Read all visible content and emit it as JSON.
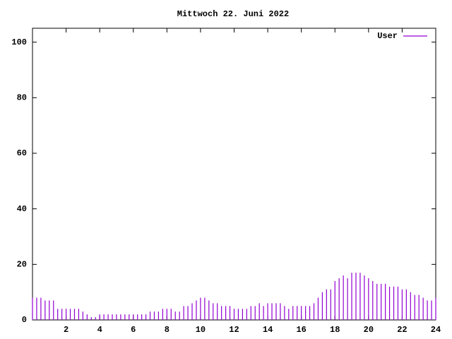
{
  "chart_data": {
    "type": "impulses",
    "title": "Mittwoch 22. Juni 2022",
    "x": [
      0,
      0.25,
      0.5,
      0.75,
      1,
      1.25,
      1.5,
      1.75,
      2,
      2.25,
      2.5,
      2.75,
      3,
      3.25,
      3.5,
      3.75,
      4,
      4.25,
      4.5,
      4.75,
      5,
      5.25,
      5.5,
      5.75,
      6,
      6.25,
      6.5,
      6.75,
      7,
      7.25,
      7.5,
      7.75,
      8,
      8.25,
      8.5,
      8.75,
      9,
      9.25,
      9.5,
      9.75,
      10,
      10.25,
      10.5,
      10.75,
      11,
      11.25,
      11.5,
      11.75,
      12,
      12.25,
      12.5,
      12.75,
      13,
      13.25,
      13.5,
      13.75,
      14,
      14.25,
      14.5,
      14.75,
      15,
      15.25,
      15.5,
      15.75,
      16,
      16.25,
      16.5,
      16.75,
      17,
      17.25,
      17.5,
      17.75,
      18,
      18.25,
      18.5,
      18.75,
      19,
      19.25,
      19.5,
      19.75,
      20,
      20.25,
      20.5,
      20.75,
      21,
      21.25,
      21.5,
      21.75,
      22,
      22.25,
      22.5,
      22.75,
      23,
      23.25,
      23.5,
      23.75,
      24
    ],
    "series": [
      {
        "name": "User",
        "color": "#9400d3",
        "values": [
          8,
          8,
          8,
          7,
          7,
          7,
          4,
          4,
          4,
          4,
          4,
          4,
          3,
          2,
          1,
          1,
          2,
          2,
          2,
          2,
          2,
          2,
          2,
          2,
          2,
          2,
          2,
          2,
          3,
          3,
          3,
          4,
          4,
          4,
          3,
          3,
          5,
          5,
          6,
          7,
          8,
          8,
          7,
          6,
          6,
          5,
          5,
          5,
          4,
          4,
          4,
          4,
          5,
          5,
          6,
          5,
          6,
          6,
          6,
          6,
          5,
          4,
          5,
          5,
          5,
          5,
          5,
          6,
          8,
          10,
          11,
          11,
          14,
          15,
          16,
          15,
          17,
          17,
          17,
          16,
          15,
          14,
          13,
          13,
          13,
          12,
          12,
          12,
          11,
          11,
          10,
          9,
          9,
          8,
          7,
          7,
          8
        ]
      }
    ],
    "xlim": [
      0,
      24
    ],
    "xticks": [
      2,
      4,
      6,
      8,
      10,
      12,
      14,
      16,
      18,
      20,
      22,
      24
    ],
    "ylim": [
      0,
      105
    ],
    "yticks": [
      0,
      20,
      40,
      60,
      80,
      100
    ],
    "grid": false,
    "legend": "top-right"
  }
}
